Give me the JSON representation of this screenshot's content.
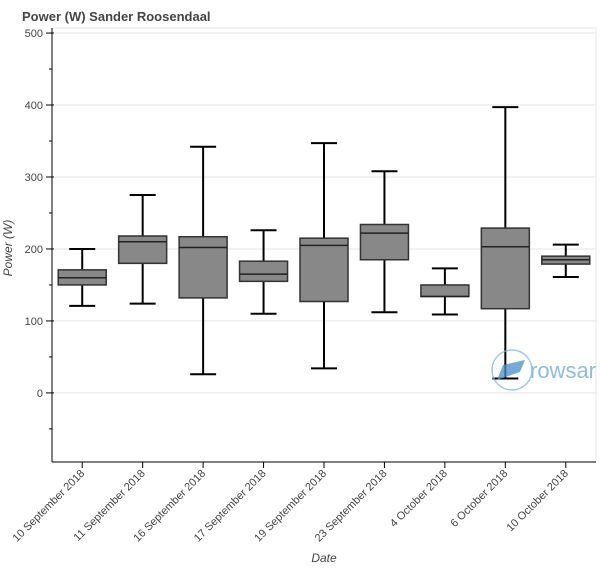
{
  "chart_data": {
    "type": "box",
    "title": "Power (W)  Sander Roosendaal",
    "xlabel": "Date",
    "ylabel": "Power (W)",
    "ylim": [
      -96,
      507
    ],
    "yticks": [
      0,
      100,
      200,
      300,
      400,
      500
    ],
    "grid": true,
    "categories": [
      "10 September 2018",
      "11 September 2018",
      "16 September 2018",
      "17 September 2018",
      "19 September 2018",
      "23 September 2018",
      "4 October 2018",
      "6 October 2018",
      "10 October 2018"
    ],
    "boxes": [
      {
        "lower": 121,
        "q1": 150,
        "median": 160,
        "q3": 171,
        "upper": 200
      },
      {
        "lower": 124,
        "q1": 180,
        "median": 210,
        "q3": 218,
        "upper": 275
      },
      {
        "lower": 26,
        "q1": 132,
        "median": 202,
        "q3": 217,
        "upper": 342
      },
      {
        "lower": 110,
        "q1": 155,
        "median": 165,
        "q3": 183,
        "upper": 226
      },
      {
        "lower": 34,
        "q1": 127,
        "median": 205,
        "q3": 215,
        "upper": 347
      },
      {
        "lower": 112,
        "q1": 185,
        "median": 222,
        "q3": 234,
        "upper": 308
      },
      {
        "lower": 109,
        "q1": 134,
        "median": 134,
        "q3": 150,
        "upper": 173
      },
      {
        "lower": 20,
        "q1": 117,
        "median": 203,
        "q3": 229,
        "upper": 397
      },
      {
        "lower": 161,
        "q1": 179,
        "median": 185,
        "q3": 190,
        "upper": 206
      }
    ],
    "colors": {
      "box": "#888888",
      "outline": "#000000",
      "grid": "#e5e5e5"
    },
    "watermark": "rowsar"
  }
}
